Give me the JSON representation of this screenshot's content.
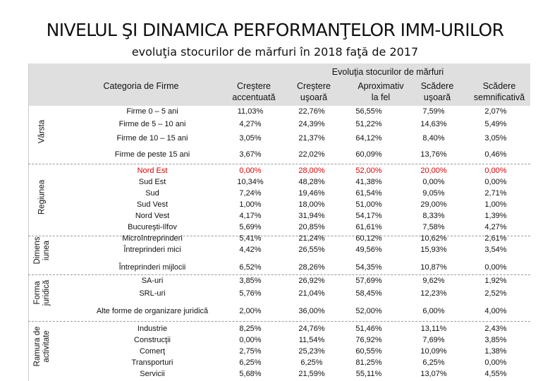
{
  "title": "NIVELUL ŞI DINAMICA PERFORMANŢELOR IMM-URILOR",
  "subtitle": "evoluţia stocurilor de mărfuri în 2018 faţă de 2017",
  "header": {
    "category": "Categoria de Firme",
    "group": "Evoluţia stocurilor de mărfuri",
    "col1": [
      "Creştere",
      "accentuată"
    ],
    "col2": [
      "Creştere",
      "uşoară"
    ],
    "col3": [
      "Aproximativ",
      "la fel"
    ],
    "col4": [
      "Scădere",
      "uşoară"
    ],
    "col5": [
      "Scădere",
      "semnificativă"
    ]
  },
  "sections": {
    "varsta": "Vârsta",
    "regiunea": "Regiunea",
    "dimensiunea": [
      "Dimens",
      "iunea"
    ],
    "forma": [
      "Forma",
      "juridică"
    ],
    "ramura": [
      "Ramura de",
      "activitate"
    ]
  },
  "rows": [
    {
      "label": "Firme 0 – 5 ani",
      "v": [
        "11,03%",
        "22,76%",
        "56,55%",
        "7,59%",
        "2,07%"
      ]
    },
    {
      "label": "Firme de 5 – 10 ani",
      "v": [
        "4,27%",
        "24,39%",
        "51,22%",
        "14,63%",
        "5,49%"
      ]
    },
    {
      "label": "Firme de 10 – 15 ani",
      "v": [
        "3,05%",
        "21,37%",
        "64,12%",
        "8,40%",
        "3,05%"
      ]
    },
    {
      "label": "Firme de peste 15 ani",
      "v": [
        "3,67%",
        "22,02%",
        "60,09%",
        "13,76%",
        "0,46%"
      ]
    },
    {
      "label": "Nord Est",
      "v": [
        "0,00%",
        "28,00%",
        "52,00%",
        "20,00%",
        "0,00%"
      ]
    },
    {
      "label": "Sud Est",
      "v": [
        "10,34%",
        "48,28%",
        "41,38%",
        "0,00%",
        "0,00%"
      ]
    },
    {
      "label": "Sud",
      "v": [
        "7,24%",
        "19,46%",
        "61,54%",
        "9,05%",
        "2,71%"
      ]
    },
    {
      "label": "Sud Vest",
      "v": [
        "1,00%",
        "18,00%",
        "51,00%",
        "29,00%",
        "1,00%"
      ]
    },
    {
      "label": "Nord Vest",
      "v": [
        "4,17%",
        "31,94%",
        "54,17%",
        "8,33%",
        "1,39%"
      ]
    },
    {
      "label": "Bucureşti-Ilfov",
      "v": [
        "5,69%",
        "20,85%",
        "61,61%",
        "7,58%",
        "4,27%"
      ]
    },
    {
      "label": "Microîntreprinderi",
      "v": [
        "5,41%",
        "21,24%",
        "60,12%",
        "10,62%",
        "2,61%"
      ]
    },
    {
      "label": "Întreprinderi mici",
      "v": [
        "4,42%",
        "26,55%",
        "49,56%",
        "15,93%",
        "3,54%"
      ]
    },
    {
      "label": "Întreprinderi mijlocii",
      "v": [
        "6,52%",
        "28,26%",
        "54,35%",
        "10,87%",
        "0,00%"
      ]
    },
    {
      "label": "SA-uri",
      "v": [
        "3,85%",
        "26,92%",
        "57,69%",
        "9,62%",
        "1,92%"
      ]
    },
    {
      "label": "SRL-uri",
      "v": [
        "5,76%",
        "21,04%",
        "58,45%",
        "12,23%",
        "2,52%"
      ]
    },
    {
      "label": "Alte forme de organizare juridică",
      "v": [
        "2,00%",
        "36,00%",
        "52,00%",
        "6,00%",
        "4,00%"
      ]
    },
    {
      "label": "Industrie",
      "v": [
        "8,25%",
        "24,76%",
        "51,46%",
        "13,11%",
        "2,43%"
      ]
    },
    {
      "label": "Construcţii",
      "v": [
        "0,00%",
        "11,54%",
        "76,92%",
        "7,69%",
        "3,85%"
      ]
    },
    {
      "label": "Comerţ",
      "v": [
        "2,75%",
        "25,23%",
        "60,55%",
        "10,09%",
        "1,38%"
      ]
    },
    {
      "label": "Transporturi",
      "v": [
        "6,25%",
        "6,25%",
        "81,25%",
        "6,25%",
        "0,00%"
      ]
    },
    {
      "label": "Servicii",
      "v": [
        "5,68%",
        "21,59%",
        "55,11%",
        "13,07%",
        "4,55%"
      ]
    }
  ],
  "highlight_color": "#e00000"
}
